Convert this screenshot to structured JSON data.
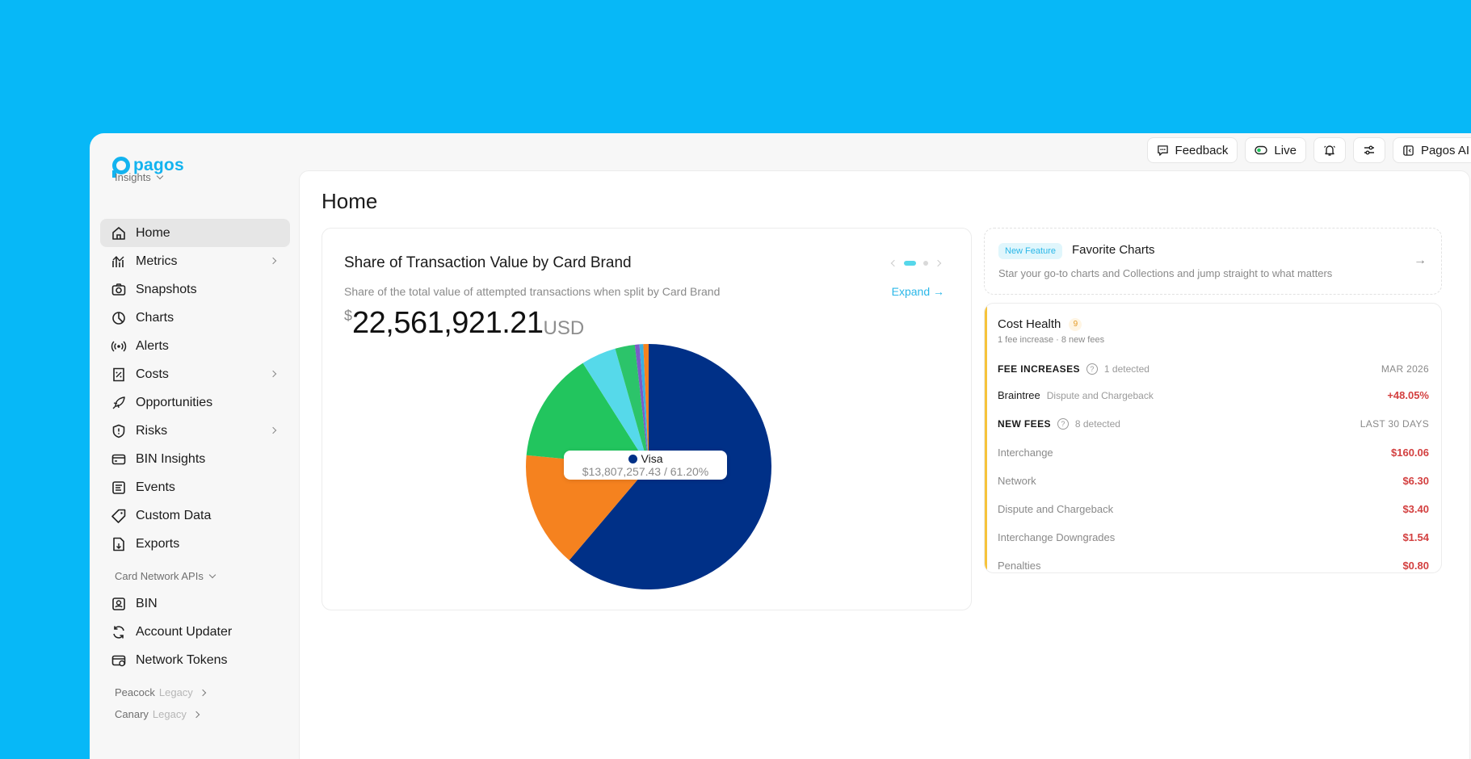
{
  "app": {
    "logo_text": "pagos"
  },
  "topbar": {
    "feedback_label": "Feedback",
    "live_label": "Live",
    "pagos_ai_label": "Pagos AI"
  },
  "sidebar": {
    "section_insights": "Insights",
    "items": [
      {
        "label": "Home",
        "icon": "home-icon"
      },
      {
        "label": "Metrics",
        "icon": "metrics-icon"
      },
      {
        "label": "Snapshots",
        "icon": "camera-icon"
      },
      {
        "label": "Charts",
        "icon": "pie-icon"
      },
      {
        "label": "Alerts",
        "icon": "broadcast-icon"
      },
      {
        "label": "Costs",
        "icon": "receipt-icon"
      },
      {
        "label": "Opportunities",
        "icon": "rocket-icon"
      },
      {
        "label": "Risks",
        "icon": "shield-icon"
      },
      {
        "label": "BIN Insights",
        "icon": "card-icon"
      },
      {
        "label": "Events",
        "icon": "list-icon"
      },
      {
        "label": "Custom Data",
        "icon": "tag-icon"
      },
      {
        "label": "Exports",
        "icon": "file-export-icon"
      }
    ],
    "section_card_network": "Card Network APIs",
    "api_items": [
      {
        "label": "BIN",
        "icon": "bin-icon"
      },
      {
        "label": "Account Updater",
        "icon": "refresh-icon"
      },
      {
        "label": "Network Tokens",
        "icon": "token-icon"
      }
    ],
    "peacock_label": "Peacock",
    "canary_label": "Canary",
    "legacy_label": "Legacy"
  },
  "main": {
    "page_title": "Home",
    "chart_card": {
      "title": "Share of Transaction Value by Card Brand",
      "subtitle": "Share of the total value of attempted transactions when split by Card Brand",
      "expand_label": "Expand",
      "currency_symbol": "$",
      "total_value": "22,561,921.21",
      "total_unit": "USD",
      "tooltip_name": "Visa",
      "tooltip_value": "$13,807,257.43 / 61.20%"
    },
    "favorite_card": {
      "badge": "New Feature",
      "title": "Favorite Charts",
      "subtitle": "Star your go-to charts and Collections and jump straight to what matters"
    },
    "cost_health": {
      "title": "Cost Health",
      "count": "9",
      "subtitle": "1 fee increase · 8 new fees",
      "fee_increases_label": "FEE INCREASES",
      "fee_increases_detected": "1 detected",
      "fee_increases_period": "MAR 2026",
      "increase_processor": "Braintree",
      "increase_category": "Dispute and Chargeback",
      "increase_value": "+48.05%",
      "new_fees_label": "NEW FEES",
      "new_fees_detected": "8 detected",
      "new_fees_period": "LAST 30 DAYS",
      "new_fees": [
        {
          "label": "Interchange",
          "value": "$160.06"
        },
        {
          "label": "Network",
          "value": "$6.30"
        },
        {
          "label": "Dispute and Chargeback",
          "value": "$3.40"
        },
        {
          "label": "Interchange Downgrades",
          "value": "$1.54"
        },
        {
          "label": "Penalties",
          "value": "$0.80"
        }
      ]
    }
  },
  "colors": {
    "background": "#07b8f7",
    "accent": "#2bb7e8",
    "visa": "#003087",
    "mastercard": "#f5821f",
    "green": "#22c55e",
    "cyan": "#56d9ea",
    "fee_red": "#d34040",
    "warning": "#f6c33a"
  },
  "chart_data": {
    "type": "pie",
    "title": "Share of Transaction Value by Card Brand",
    "slices": [
      {
        "name": "Visa",
        "value": 61.2,
        "color": "#003087"
      },
      {
        "name": "",
        "value": 15.3,
        "color": "#f5821f"
      },
      {
        "name": "",
        "value": 14.5,
        "color": "#22c55e"
      },
      {
        "name": "",
        "value": 4.6,
        "color": "#56d9ea"
      },
      {
        "name": "",
        "value": 2.6,
        "color": "#2cc46a"
      },
      {
        "name": "",
        "value": 0.6,
        "color": "#7a5cc7"
      },
      {
        "name": "",
        "value": 0.5,
        "color": "#3ab0e2"
      },
      {
        "name": "",
        "value": 0.7,
        "color": "#f5821f"
      }
    ]
  }
}
